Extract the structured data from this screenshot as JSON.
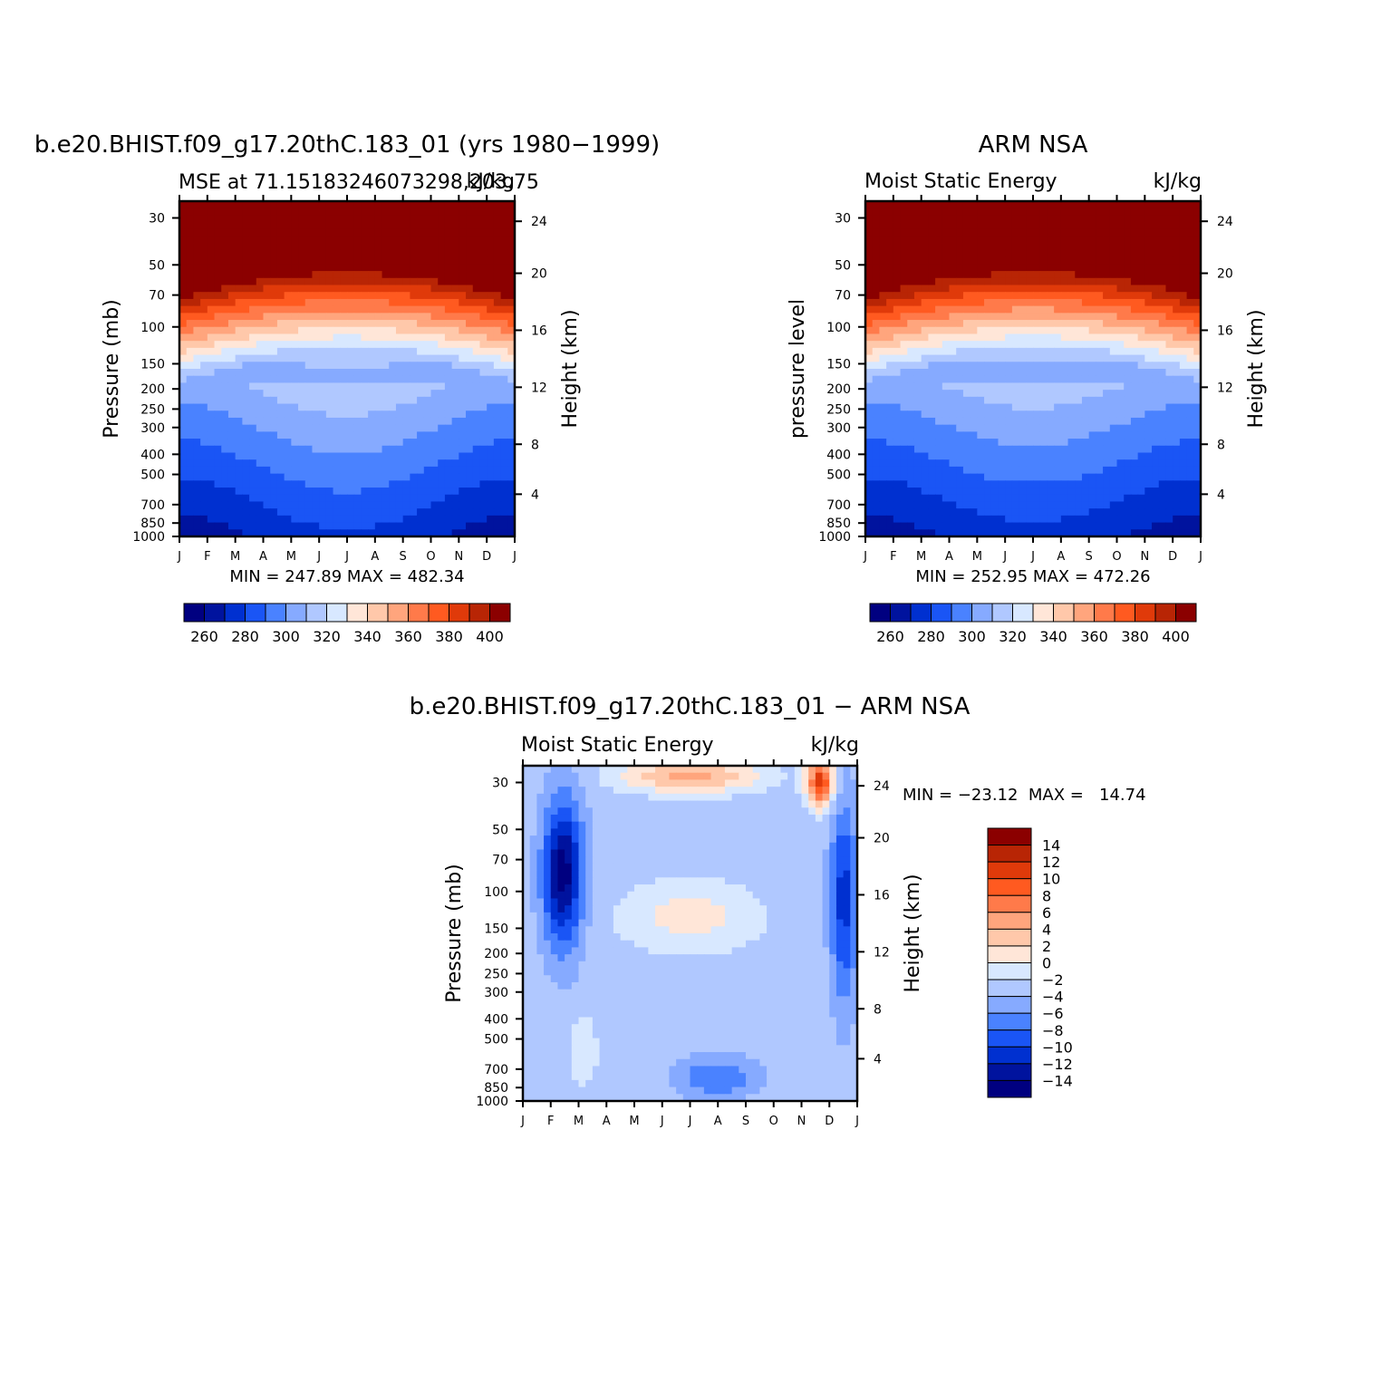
{
  "colors": {
    "mse_levels": [
      "#000080",
      "#00139e",
      "#0030d0",
      "#1a55f5",
      "#4a82ff",
      "#86aaff",
      "#b0c8ff",
      "#d8e8ff",
      "#ffe6d8",
      "#ffc8aa",
      "#ffa57d",
      "#ff7a4a",
      "#ff5a20",
      "#e03a0a",
      "#b82505",
      "#8b0000"
    ],
    "diff_levels": [
      "#000080",
      "#00139e",
      "#0030d0",
      "#1a55f5",
      "#4a82ff",
      "#86aaff",
      "#b0c8ff",
      "#d8e8ff",
      "#ffe6d8",
      "#ffc8aa",
      "#ffa57d",
      "#ff7a4a",
      "#ff5a20",
      "#e03a0a",
      "#b82505",
      "#8b0000"
    ]
  },
  "chart_data": [
    {
      "type": "heatmap",
      "id": "model",
      "title": "b.e20.BHIST.f09_g17.20thC.183_01 (yrs 1980−1999)",
      "left_subtitle": "MSE at 71.15183246073298,203.75",
      "right_subtitle": "kJ/kg",
      "ylabel": "Pressure (mb)",
      "y2label": "Height (km)",
      "x_ticks": [
        "J",
        "F",
        "M",
        "A",
        "M",
        "J",
        "J",
        "A",
        "S",
        "O",
        "N",
        "D",
        "J"
      ],
      "y_ticks": [
        "30",
        "50",
        "70",
        "100",
        "150",
        "200",
        "250",
        "300",
        "400",
        "500",
        "700",
        "850",
        "1000"
      ],
      "y2_ticks": [
        "24",
        "20",
        "16",
        "12",
        "8",
        "4"
      ],
      "stats": "MIN = 247.89  MAX = 482.34",
      "min": 247.89,
      "max": 482.34,
      "colorbar_labels": [
        "260",
        "280",
        "300",
        "320",
        "340",
        "360",
        "380",
        "400"
      ],
      "contour_base": 250,
      "contour_step": 10,
      "seasonal_amplitude": 22
    },
    {
      "type": "heatmap",
      "id": "obs",
      "title": "ARM NSA",
      "left_subtitle": "Moist Static Energy",
      "right_subtitle": "kJ/kg",
      "ylabel": "pressure level",
      "y2label": "Height (km)",
      "x_ticks": [
        "J",
        "F",
        "M",
        "A",
        "M",
        "J",
        "J",
        "A",
        "S",
        "O",
        "N",
        "D",
        "J"
      ],
      "y_ticks": [
        "30",
        "50",
        "70",
        "100",
        "150",
        "200",
        "250",
        "300",
        "400",
        "500",
        "700",
        "850",
        "1000"
      ],
      "y2_ticks": [
        "24",
        "20",
        "16",
        "12",
        "8",
        "4"
      ],
      "stats": "MIN = 252.95  MAX = 472.26",
      "min": 252.95,
      "max": 472.26,
      "colorbar_labels": [
        "260",
        "280",
        "300",
        "320",
        "340",
        "360",
        "380",
        "400"
      ],
      "contour_base": 250,
      "contour_step": 10,
      "seasonal_amplitude": 20
    },
    {
      "type": "heatmap",
      "id": "diff",
      "title": "b.e20.BHIST.f09_g17.20thC.183_01 − ARM NSA",
      "left_subtitle": "Moist Static Energy",
      "right_subtitle": "kJ/kg",
      "ylabel": "Pressure (mb)",
      "y2label": "Height (km)",
      "x_ticks": [
        "J",
        "F",
        "M",
        "A",
        "M",
        "J",
        "J",
        "A",
        "S",
        "O",
        "N",
        "D",
        "J"
      ],
      "y_ticks": [
        "30",
        "50",
        "70",
        "100",
        "150",
        "200",
        "250",
        "300",
        "400",
        "500",
        "700",
        "850",
        "1000"
      ],
      "y2_ticks": [
        "24",
        "20",
        "16",
        "12",
        "8",
        "4"
      ],
      "stats": "MIN = −23.12  MAX =   14.74",
      "min": -23.12,
      "max": 14.74,
      "colorbar_labels": [
        "14",
        "12",
        "10",
        "8",
        "6",
        "4",
        "2",
        "0",
        "−2",
        "−4",
        "−6",
        "−8",
        "−10",
        "−12",
        "−14"
      ],
      "contour_base": -16,
      "contour_step": 2
    }
  ]
}
